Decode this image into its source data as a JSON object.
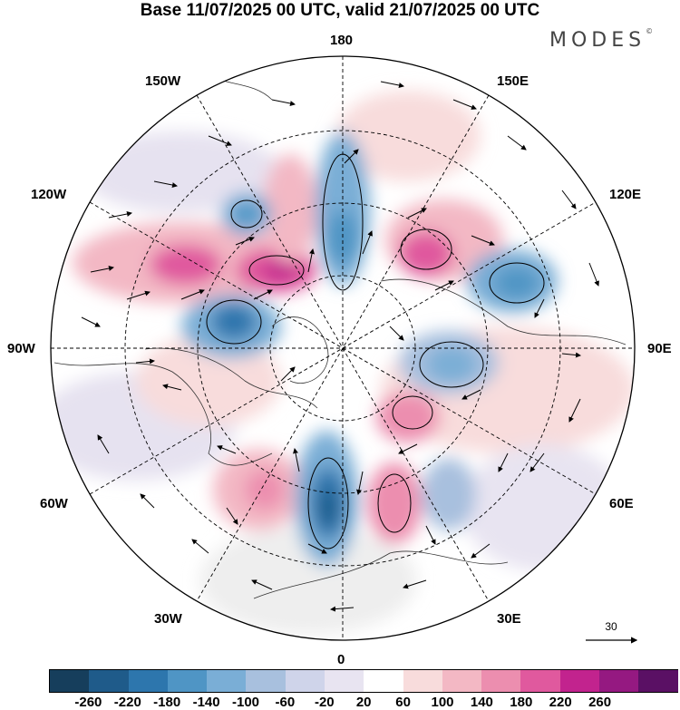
{
  "title": "Base 11/07/2025 00 UTC, valid 21/07/2025 00 UTC",
  "brand": "MODES",
  "brand_mark": "©",
  "longitude_labels": {
    "deg180": "180",
    "deg150w": "150W",
    "deg150e": "150E",
    "deg120w": "120W",
    "deg120e": "120E",
    "deg90w": "90W",
    "deg90e": "90E",
    "deg60w": "60W",
    "deg60e": "60E",
    "deg30w": "30W",
    "deg30e": "30E",
    "deg0": "0"
  },
  "vector_scale_label": "30",
  "colorbar": {
    "colors": [
      "#163e5c",
      "#1f5b8a",
      "#2d76ad",
      "#4f95c5",
      "#7aaed6",
      "#a8c0de",
      "#cfd4ea",
      "#e8e4f1",
      "#ffffff",
      "#f8dcdc",
      "#f3b8c4",
      "#ec8eaf",
      "#e0599e",
      "#c2238e",
      "#951981",
      "#5a1064"
    ],
    "labels": [
      "-260",
      "-220",
      "-180",
      "-140",
      "-100",
      "-60",
      "-20",
      "20",
      "60",
      "100",
      "140",
      "180",
      "220",
      "260"
    ]
  },
  "colors": {
    "positive": "#e36fa4",
    "negative": "#4d8fc3",
    "land_neutral": "#e8e8e8"
  }
}
